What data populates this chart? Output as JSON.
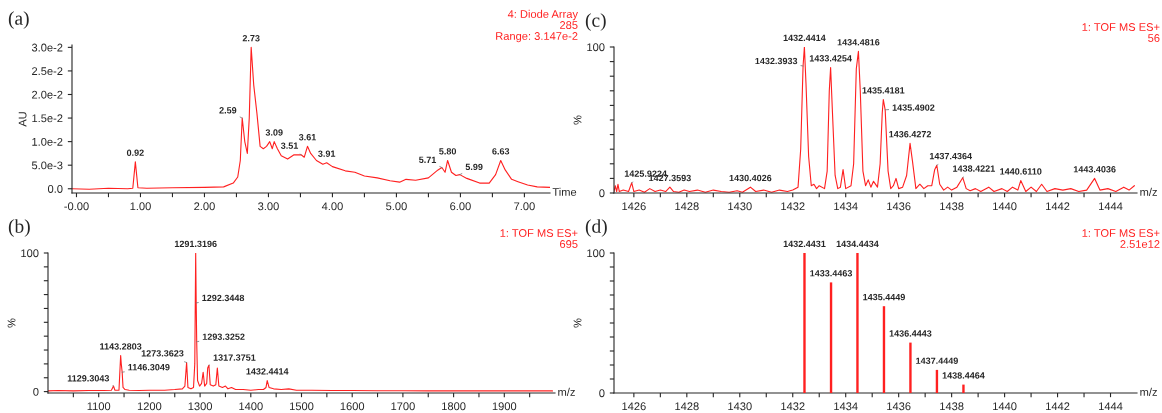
{
  "chart_data": [
    {
      "type": "line",
      "title": "(a)",
      "xlabel": "Time",
      "ylabel": "AU",
      "series": [
        {
          "color": "#ff2020",
          "x": [
            -0.07,
            0.2,
            0.5,
            0.8,
            0.88,
            0.92,
            0.96,
            1.1,
            1.5,
            2.0,
            2.3,
            2.45,
            2.52,
            2.56,
            2.59,
            2.63,
            2.67,
            2.7,
            2.73,
            2.77,
            2.82,
            2.87,
            2.92,
            2.97,
            3.02,
            3.06,
            3.09,
            3.14,
            3.2,
            3.3,
            3.4,
            3.51,
            3.56,
            3.61,
            3.66,
            3.75,
            3.85,
            3.91,
            4.0,
            4.2,
            4.35,
            4.5,
            4.7,
            4.9,
            5.05,
            5.15,
            5.3,
            5.5,
            5.65,
            5.71,
            5.76,
            5.8,
            5.86,
            5.93,
            5.99,
            6.1,
            6.3,
            6.45,
            6.55,
            6.63,
            6.7,
            6.8,
            6.9,
            7.05,
            7.2,
            7.4
          ],
          "values": [
            0.0,
            -0.0001,
            0.0001,
            0.0,
            0.0001,
            0.0057,
            0.0002,
            0.0001,
            0.0002,
            0.0003,
            0.0004,
            0.0012,
            0.0025,
            0.006,
            0.015,
            0.01,
            0.0075,
            0.015,
            0.03,
            0.022,
            0.016,
            0.009,
            0.0085,
            0.009,
            0.01,
            0.0085,
            0.01,
            0.0085,
            0.007,
            0.0063,
            0.0072,
            0.0072,
            0.0067,
            0.009,
            0.0075,
            0.006,
            0.0052,
            0.0055,
            0.0047,
            0.0038,
            0.0035,
            0.0027,
            0.0023,
            0.0017,
            0.0014,
            0.002,
            0.0018,
            0.0023,
            0.004,
            0.0045,
            0.0035,
            0.006,
            0.0035,
            0.0028,
            0.003,
            0.0022,
            0.0012,
            0.0012,
            0.003,
            0.006,
            0.004,
            0.002,
            0.0015,
            0.0008,
            0.0004,
            0.0003
          ]
        }
      ],
      "xlim": [
        -0.07,
        7.4
      ],
      "ylim": [
        -0.0009,
        0.0305
      ],
      "xticks": [
        {
          "value": 0,
          "label": "-0.00"
        },
        {
          "value": 0.5,
          "label": null
        },
        {
          "value": 1,
          "label": "1.00"
        },
        {
          "value": 1.5,
          "label": null
        },
        {
          "value": 2,
          "label": "2.00"
        },
        {
          "value": 2.5,
          "label": null
        },
        {
          "value": 3,
          "label": "3.00"
        },
        {
          "value": 3.5,
          "label": null
        },
        {
          "value": 4,
          "label": "4.00"
        },
        {
          "value": 4.5,
          "label": null
        },
        {
          "value": 5,
          "label": "5.00"
        },
        {
          "value": 5.5,
          "label": null
        },
        {
          "value": 6,
          "label": "6.00"
        },
        {
          "value": 6.5,
          "label": null
        },
        {
          "value": 7,
          "label": "7.00"
        }
      ],
      "yticks": [
        {
          "value": 0,
          "label": "0.0"
        },
        {
          "value": 0.005,
          "label": "5.0e-3"
        },
        {
          "value": 0.01,
          "label": "1.0e-2"
        },
        {
          "value": 0.015,
          "label": "1.5e-2"
        },
        {
          "value": 0.02,
          "label": "2.0e-2"
        },
        {
          "value": 0.025,
          "label": "2.5e-2"
        },
        {
          "value": 0.03,
          "label": "3.0e-2"
        }
      ],
      "annotations": [
        "4: Diode Array",
        "285",
        "Range: 3.147e-2",
        {
          "text": "0.92",
          "x": 0.92,
          "y": 0.0057
        },
        {
          "text": "2.59",
          "x": 2.59,
          "y": 0.015
        },
        {
          "text": "2.73",
          "x": 2.73,
          "y": 0.03
        },
        {
          "text": "3.09",
          "x": 3.09,
          "y": 0.01
        },
        {
          "text": "3.51",
          "x": 3.51,
          "y": 0.0072
        },
        {
          "text": "3.61",
          "x": 3.61,
          "y": 0.009
        },
        {
          "text": "3.91",
          "x": 3.91,
          "y": 0.0055
        },
        {
          "text": "5.71",
          "x": 5.71,
          "y": 0.0045
        },
        {
          "text": "5.80",
          "x": 5.8,
          "y": 0.006
        },
        {
          "text": "5.99",
          "x": 5.99,
          "y": 0.003
        },
        {
          "text": "6.63",
          "x": 6.63,
          "y": 0.006
        }
      ]
    },
    {
      "type": "line",
      "title": "(c)",
      "xlabel": "m/z",
      "ylabel": "%",
      "series": [
        {
          "color": "#ff2020",
          "x": [
            1425.25,
            1425.3,
            1425.35,
            1425.4,
            1425.45,
            1425.6,
            1425.8,
            1425.92,
            1426.0,
            1426.2,
            1426.4,
            1426.6,
            1426.8,
            1427.0,
            1427.2,
            1427.36,
            1427.5,
            1427.7,
            1427.9,
            1428.1,
            1428.4,
            1428.7,
            1429.0,
            1429.3,
            1429.6,
            1429.9,
            1430.1,
            1430.4,
            1430.6,
            1430.9,
            1431.2,
            1431.5,
            1431.8,
            1432.0,
            1432.2,
            1432.3,
            1432.39,
            1432.44,
            1432.5,
            1432.6,
            1432.7,
            1432.8,
            1432.9,
            1433.0,
            1433.2,
            1433.3,
            1433.38,
            1433.43,
            1433.5,
            1433.6,
            1433.7,
            1433.8,
            1433.9,
            1434.0,
            1434.2,
            1434.3,
            1434.4,
            1434.48,
            1434.55,
            1434.65,
            1434.75,
            1434.85,
            1434.95,
            1435.05,
            1435.2,
            1435.3,
            1435.38,
            1435.42,
            1435.49,
            1435.6,
            1435.7,
            1435.8,
            1435.9,
            1436.0,
            1436.15,
            1436.3,
            1436.43,
            1436.52,
            1436.65,
            1436.8,
            1436.95,
            1437.1,
            1437.25,
            1437.36,
            1437.44,
            1437.55,
            1437.7,
            1437.85,
            1438.0,
            1438.2,
            1438.42,
            1438.55,
            1438.7,
            1438.9,
            1439.1,
            1439.4,
            1439.6,
            1439.9,
            1440.1,
            1440.3,
            1440.5,
            1440.61,
            1440.8,
            1441.0,
            1441.2,
            1441.4,
            1441.6,
            1441.9,
            1442.2,
            1442.5,
            1442.8,
            1443.1,
            1443.4,
            1443.6,
            1443.9,
            1444.2,
            1444.5,
            1444.7,
            1444.9
          ],
          "values": [
            1,
            5,
            1,
            6,
            1,
            2,
            1,
            7,
            1,
            2,
            0.5,
            3,
            1,
            2,
            1,
            4,
            1,
            0.5,
            2,
            1,
            2,
            0.5,
            2,
            1,
            0.5,
            1.5,
            0.5,
            4,
            1,
            2,
            0.5,
            2,
            1,
            2,
            4,
            30,
            87,
            100,
            75,
            25,
            5,
            6,
            3,
            5,
            3,
            15,
            70,
            86,
            55,
            12,
            3,
            4,
            16,
            3,
            5,
            20,
            85,
            97,
            70,
            15,
            5,
            9,
            4,
            8,
            4,
            20,
            55,
            64,
            57,
            15,
            3,
            5,
            10,
            3,
            4,
            12,
            34,
            22,
            3,
            6,
            3,
            5,
            5,
            16,
            19,
            6,
            2,
            4,
            2,
            4,
            10.5,
            3,
            1.5,
            3,
            1,
            4,
            1,
            3,
            1,
            4,
            2,
            8.5,
            1,
            4,
            1,
            6,
            1,
            3,
            2,
            3,
            1,
            2,
            10,
            2,
            3,
            1,
            4,
            2,
            5
          ]
        }
      ],
      "xlim": [
        1425.25,
        1445
      ],
      "ylim": [
        0,
        100
      ],
      "xticks": [
        1426,
        {
          "value": 1427,
          "label": null
        },
        1428,
        {
          "value": 1429,
          "label": null
        },
        1430,
        {
          "value": 1431,
          "label": null
        },
        1432,
        {
          "value": 1433,
          "label": null
        },
        1434,
        {
          "value": 1435,
          "label": null
        },
        1436,
        {
          "value": 1437,
          "label": null
        },
        1438,
        {
          "value": 1439,
          "label": null
        },
        1440,
        {
          "value": 1441,
          "label": null
        },
        1442,
        {
          "value": 1443,
          "label": null
        },
        1444
      ],
      "yticks": [
        0,
        {
          "value": 10,
          "label": null
        },
        {
          "value": 20,
          "label": null
        },
        {
          "value": 30,
          "label": null
        },
        {
          "value": 40,
          "label": null
        },
        {
          "value": 50,
          "label": null
        },
        {
          "value": 60,
          "label": null
        },
        {
          "value": 70,
          "label": null
        },
        {
          "value": 80,
          "label": null
        },
        {
          "value": 90,
          "label": null
        },
        100
      ],
      "annotations": [
        "1: TOF MS ES+",
        "56",
        {
          "text": "1425.9224",
          "x": 1425.92,
          "y": 7
        },
        {
          "text": "1427.3593",
          "x": 1427.36,
          "y": 4
        },
        {
          "text": "1430.4026",
          "x": 1430.4,
          "y": 4
        },
        {
          "text": "1432.3933",
          "x": 1432.39,
          "y": 87
        },
        {
          "text": "1432.4414",
          "x": 1432.44,
          "y": 100
        },
        {
          "text": "1433.4254",
          "x": 1433.43,
          "y": 86
        },
        {
          "text": "1434.4816",
          "x": 1434.48,
          "y": 97
        },
        {
          "text": "1435.4181",
          "x": 1435.42,
          "y": 64
        },
        {
          "text": "1435.4902",
          "x": 1435.49,
          "y": 57
        },
        {
          "text": "1436.4272",
          "x": 1436.43,
          "y": 34
        },
        {
          "text": "1437.4364",
          "x": 1437.44,
          "y": 19
        },
        {
          "text": "1438.4221",
          "x": 1438.42,
          "y": 10.5
        },
        {
          "text": "1440.6110",
          "x": 1440.61,
          "y": 8.5
        },
        {
          "text": "1443.4036",
          "x": 1443.4,
          "y": 10
        }
      ]
    },
    {
      "type": "line",
      "title": "(b)",
      "xlabel": "m/z",
      "ylabel": "%",
      "series": [
        {
          "color": "#ff2020",
          "x": [
            1000,
            1020,
            1050,
            1080,
            1110,
            1125,
            1129.3,
            1132,
            1140,
            1143.3,
            1144.5,
            1146.3,
            1148,
            1152,
            1160,
            1180,
            1200,
            1230,
            1250,
            1265,
            1270,
            1273.4,
            1276,
            1282,
            1287,
            1289.5,
            1291.3,
            1292.3,
            1293.3,
            1295,
            1299,
            1303,
            1306,
            1309,
            1313,
            1315,
            1317.4,
            1320,
            1326,
            1331,
            1334,
            1337,
            1344,
            1350,
            1355,
            1362,
            1370,
            1385,
            1400,
            1415,
            1425,
            1430,
            1432.4,
            1436,
            1445,
            1460,
            1475,
            1490,
            1520,
            1560,
            1600,
            1650,
            1700,
            1750,
            1800,
            1850,
            1900,
            1950,
            1995
          ],
          "values": [
            0.5,
            0.8,
            0.5,
            0.8,
            0.8,
            1,
            4,
            1,
            1,
            26,
            20,
            14,
            3,
            1.5,
            1,
            0.8,
            1,
            1,
            1.5,
            2,
            4,
            21,
            3,
            2,
            3,
            20,
            100,
            64,
            36,
            8,
            4,
            6,
            14,
            4,
            6,
            17,
            19,
            5,
            4,
            5,
            17,
            4,
            3,
            4,
            2,
            3,
            1.5,
            1.5,
            1,
            1.5,
            1.5,
            3,
            8,
            3,
            2,
            1.5,
            2,
            1,
            1,
            0.8,
            0.8,
            0.6,
            0.6,
            0.5,
            0.5,
            0.5,
            0.5,
            0.5,
            0.5
          ]
        }
      ],
      "xlim": [
        1000,
        2000
      ],
      "ylim": [
        -1,
        100
      ],
      "xticks": [
        {
          "value": 1050,
          "label": null
        },
        1100,
        {
          "value": 1150,
          "label": null
        },
        1200,
        {
          "value": 1250,
          "label": null
        },
        1300,
        {
          "value": 1350,
          "label": null
        },
        1400,
        {
          "value": 1450,
          "label": null
        },
        1500,
        {
          "value": 1550,
          "label": null
        },
        1600,
        {
          "value": 1650,
          "label": null
        },
        1700,
        {
          "value": 1750,
          "label": null
        },
        1800,
        {
          "value": 1850,
          "label": null
        },
        1900,
        {
          "value": 1950,
          "label": null
        }
      ],
      "yticks": [
        0,
        {
          "value": 10,
          "label": null
        },
        {
          "value": 20,
          "label": null
        },
        {
          "value": 30,
          "label": null
        },
        {
          "value": 40,
          "label": null
        },
        {
          "value": 50,
          "label": null
        },
        {
          "value": 60,
          "label": null
        },
        {
          "value": 70,
          "label": null
        },
        {
          "value": 80,
          "label": null
        },
        {
          "value": 90,
          "label": null
        },
        100
      ],
      "annotations": [
        "1: TOF MS ES+",
        "695",
        {
          "text": "1129.3043",
          "x": 1129.3,
          "y": 4
        },
        {
          "text": "1143.2803",
          "x": 1143.3,
          "y": 26
        },
        {
          "text": "1146.3049",
          "x": 1146.3,
          "y": 14
        },
        {
          "text": "1273.3623",
          "x": 1273.4,
          "y": 21
        },
        {
          "text": "1291.3196",
          "x": 1291.3,
          "y": 100
        },
        {
          "text": "1292.3448",
          "x": 1292.3,
          "y": 64
        },
        {
          "text": "1293.3252",
          "x": 1293.3,
          "y": 36
        },
        {
          "text": "1317.3751",
          "x": 1317.4,
          "y": 19
        },
        {
          "text": "1432.4414",
          "x": 1432.4,
          "y": 8
        }
      ]
    },
    {
      "type": "bar",
      "title": "(d)",
      "xlabel": "m/z",
      "ylabel": "%",
      "series": [
        {
          "color": "#ff2020",
          "x": [
            1432.4431,
            1433.4463,
            1434.4434,
            1435.4449,
            1436.4443,
            1437.4449,
            1438.4464
          ],
          "values": [
            100,
            79,
            100,
            62,
            36,
            16.5,
            6
          ]
        }
      ],
      "xlim": [
        1425.25,
        1445
      ],
      "ylim": [
        0,
        100
      ],
      "xticks": [
        1426,
        {
          "value": 1427,
          "label": null
        },
        1428,
        {
          "value": 1429,
          "label": null
        },
        1430,
        {
          "value": 1431,
          "label": null
        },
        1432,
        {
          "value": 1433,
          "label": null
        },
        1434,
        {
          "value": 1435,
          "label": null
        },
        1436,
        {
          "value": 1437,
          "label": null
        },
        1438,
        {
          "value": 1439,
          "label": null
        },
        1440,
        {
          "value": 1441,
          "label": null
        },
        1442,
        {
          "value": 1443,
          "label": null
        },
        1444
      ],
      "yticks": [
        0,
        {
          "value": 10,
          "label": null
        },
        {
          "value": 20,
          "label": null
        },
        {
          "value": 30,
          "label": null
        },
        {
          "value": 40,
          "label": null
        },
        {
          "value": 50,
          "label": null
        },
        {
          "value": 60,
          "label": null
        },
        {
          "value": 70,
          "label": null
        },
        {
          "value": 80,
          "label": null
        },
        {
          "value": 90,
          "label": null
        },
        100
      ],
      "annotations": [
        "1: TOF MS ES+",
        "2.51e12",
        {
          "text": "1432.4431",
          "x": 1432.4431,
          "y": 100
        },
        {
          "text": "1433.4463",
          "x": 1433.4463,
          "y": 79
        },
        {
          "text": "1434.4434",
          "x": 1434.4434,
          "y": 100
        },
        {
          "text": "1435.4449",
          "x": 1435.4449,
          "y": 62
        },
        {
          "text": "1436.4443",
          "x": 1436.4443,
          "y": 36
        },
        {
          "text": "1437.4449",
          "x": 1437.4449,
          "y": 16.5
        },
        {
          "text": "1438.4464",
          "x": 1438.4464,
          "y": 6
        }
      ]
    }
  ]
}
